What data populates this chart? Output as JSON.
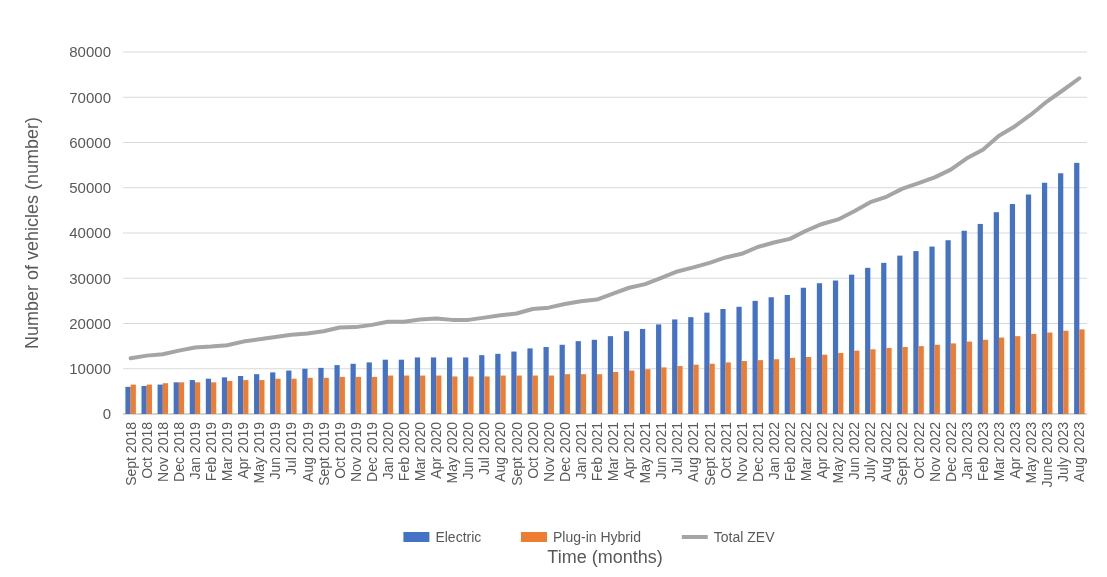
{
  "chart_data": {
    "type": "bar",
    "xlabel": "Time (months)",
    "ylabel": "Number of vehicles (number)",
    "categories": [
      "Sept 2018",
      "Oct 2018",
      "Nov 2018",
      "Dec 2018",
      "Jan 2019",
      "Feb 2019",
      "Mar 2019",
      "Apr 2019",
      "May 2019",
      "Jun 2019",
      "Jul 2019",
      "Aug 2019",
      "Sept 2019",
      "Oct 2019",
      "Nov 2019",
      "Dec 2019",
      "Jan 2020",
      "Feb 2020",
      "Mar 2020",
      "Apr 2020",
      "May 2020",
      "Jun 2020",
      "Jul 2020",
      "Aug 2020",
      "Sept 2020",
      "Oct 2020",
      "Nov 2020",
      "Dec 2020",
      "Jan 2021",
      "Feb 2021",
      "Mar 2021",
      "Apr 2021",
      "May 2021",
      "Jun 2021",
      "Jul 2021",
      "Aug 2021",
      "Sept 2021",
      "Oct 2021",
      "Nov 2021",
      "Dec 2021",
      "Jan 2022",
      "Feb 2022",
      "Mar 2022",
      "Apr 2022",
      "May 2022",
      "Jun 2022",
      "July 2022",
      "Aug 2022",
      "Sept 2022",
      "Oct 2022",
      "Nov 2022",
      "Dec 2022",
      "Jan 2023",
      "Feb 2023",
      "Mar 2023",
      "Apr 2023",
      "May 2023",
      "June 2023",
      "July 2023",
      "Aug 2023"
    ],
    "series": [
      {
        "name": "Electric",
        "color": "#4472c4",
        "values": [
          6000,
          6200,
          6500,
          7000,
          7500,
          7800,
          8100,
          8400,
          8800,
          9200,
          9600,
          10000,
          10200,
          10800,
          11100,
          11400,
          12000,
          12000,
          12500,
          12500,
          12500,
          12500,
          13000,
          13300,
          13800,
          14500,
          14800,
          15300,
          16100,
          16400,
          17200,
          18300,
          18800,
          19800,
          20900,
          21400,
          22400,
          23200,
          23700,
          25000,
          25800,
          26300,
          27900,
          28900,
          29500,
          30800,
          32300,
          33400,
          35000,
          36000,
          37000,
          38400,
          40500,
          42000,
          44600,
          46400,
          48500,
          51100,
          53200,
          55500
        ]
      },
      {
        "name": "Plug-in Hybrid",
        "color": "#ed7d31",
        "values": [
          6500,
          6500,
          6800,
          7000,
          7000,
          7000,
          7300,
          7500,
          7500,
          7800,
          7800,
          8000,
          8000,
          8200,
          8200,
          8200,
          8500,
          8500,
          8500,
          8500,
          8300,
          8300,
          8300,
          8500,
          8500,
          8500,
          8500,
          8800,
          8800,
          8800,
          9300,
          9600,
          9900,
          10300,
          10600,
          10900,
          11100,
          11400,
          11700,
          11900,
          12100,
          12400,
          12600,
          13100,
          13500,
          14000,
          14300,
          14600,
          14800,
          15000,
          15300,
          15600,
          16000,
          16400,
          16900,
          17200,
          17700,
          18000,
          18400,
          18700
        ]
      },
      {
        "name": "Total ZEV",
        "type": "line",
        "color": "#a5a5a5",
        "values": [
          12300,
          12900,
          13200,
          14000,
          14700,
          14900,
          15200,
          16000,
          16500,
          17000,
          17500,
          17800,
          18300,
          19100,
          19200,
          19700,
          20400,
          20400,
          20900,
          21100,
          20800,
          20800,
          21300,
          21800,
          22200,
          23200,
          23500,
          24300,
          24900,
          25300,
          26600,
          27900,
          28700,
          30100,
          31500,
          32400,
          33400,
          34600,
          35400,
          36900,
          37900,
          38700,
          40500,
          42000,
          43000,
          44800,
          46800,
          48000,
          49800,
          51000,
          52300,
          54000,
          56500,
          58400,
          61500,
          63600,
          66200,
          69100,
          71600,
          74200
        ]
      }
    ],
    "ylim": [
      0,
      80000
    ],
    "yticks": [
      0,
      10000,
      20000,
      30000,
      40000,
      50000,
      60000,
      70000,
      80000
    ],
    "grid": "y",
    "legend": "bottom",
    "marker": "none"
  }
}
